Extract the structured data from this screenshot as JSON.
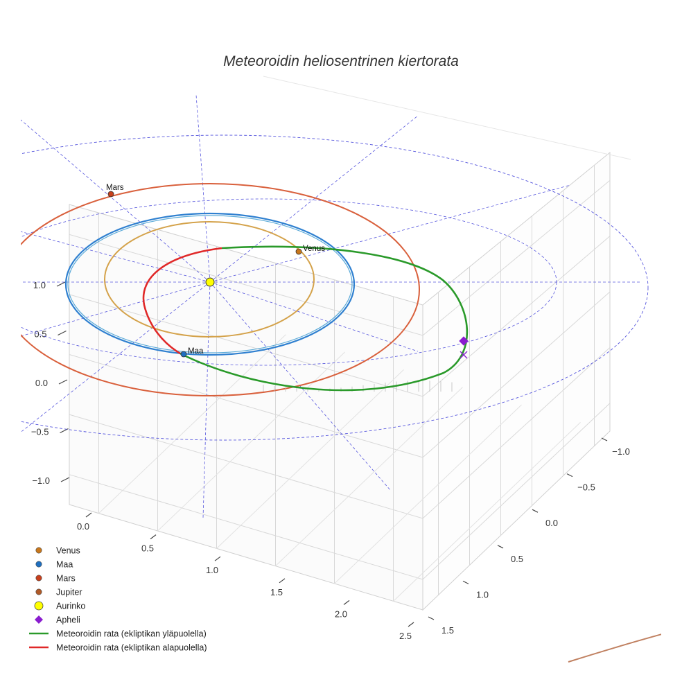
{
  "chart_data": {
    "type": "scatter3d",
    "title": "Meteoroidin heliosentrinen kiertorata",
    "axes": {
      "x": {
        "ticks": [
          "0.0",
          "0.5",
          "1.0",
          "1.5",
          "2.0",
          "2.5"
        ],
        "range": [
          0,
          2.5
        ]
      },
      "y": {
        "ticks": [
          "−1.0",
          "−0.5",
          "0.0",
          "0.5",
          "1.0",
          "1.5"
        ],
        "range": [
          -1.0,
          1.5
        ]
      },
      "z": {
        "ticks": [
          "1.0",
          "0.5",
          "0.0",
          "−0.5",
          "−1.0"
        ],
        "range": [
          -1.0,
          1.0
        ]
      }
    },
    "planets": [
      {
        "name": "Venus",
        "color": "#c8771c",
        "orbit_color": "#d4a24a",
        "show_label": true
      },
      {
        "name": "Maa",
        "color": "#1f6fbf",
        "orbit_color": "#2f80d0",
        "show_label": true
      },
      {
        "name": "Mars",
        "color": "#c8401c",
        "orbit_color": "#d9603c",
        "show_label": true
      },
      {
        "name": "Jupiter",
        "color": "#b05a28",
        "orbit_color": "#c08060",
        "show_label": false
      }
    ],
    "sun": {
      "name": "Aurinko",
      "color": "#ffff00"
    },
    "aphelion": {
      "name": "Apheli",
      "color": "#8a1ccf"
    },
    "meteoroid_orbit": {
      "above": {
        "name": "Meteoroidin rata (ekliptikan yläpuolella)",
        "color": "#2a9a2a"
      },
      "below": {
        "name": "Meteoroidin rata (ekliptikan alapuolella)",
        "color": "#e02828"
      }
    },
    "legend": [
      {
        "label": "Venus",
        "marker": "circle",
        "color": "#c8771c"
      },
      {
        "label": "Maa",
        "marker": "circle",
        "color": "#1f6fbf"
      },
      {
        "label": "Mars",
        "marker": "circle",
        "color": "#c8401c"
      },
      {
        "label": "Jupiter",
        "marker": "circle",
        "color": "#b05a28"
      },
      {
        "label": "Aurinko",
        "marker": "big-circle",
        "color": "#ffff00"
      },
      {
        "label": "Apheli",
        "marker": "diamond",
        "color": "#8a1ccf"
      },
      {
        "label": "Meteoroidin rata (ekliptikan yläpuolella)",
        "marker": "line",
        "color": "#2a9a2a"
      },
      {
        "label": "Meteoroidin rata (ekliptikan alapuolella)",
        "marker": "line",
        "color": "#e02828"
      }
    ]
  }
}
